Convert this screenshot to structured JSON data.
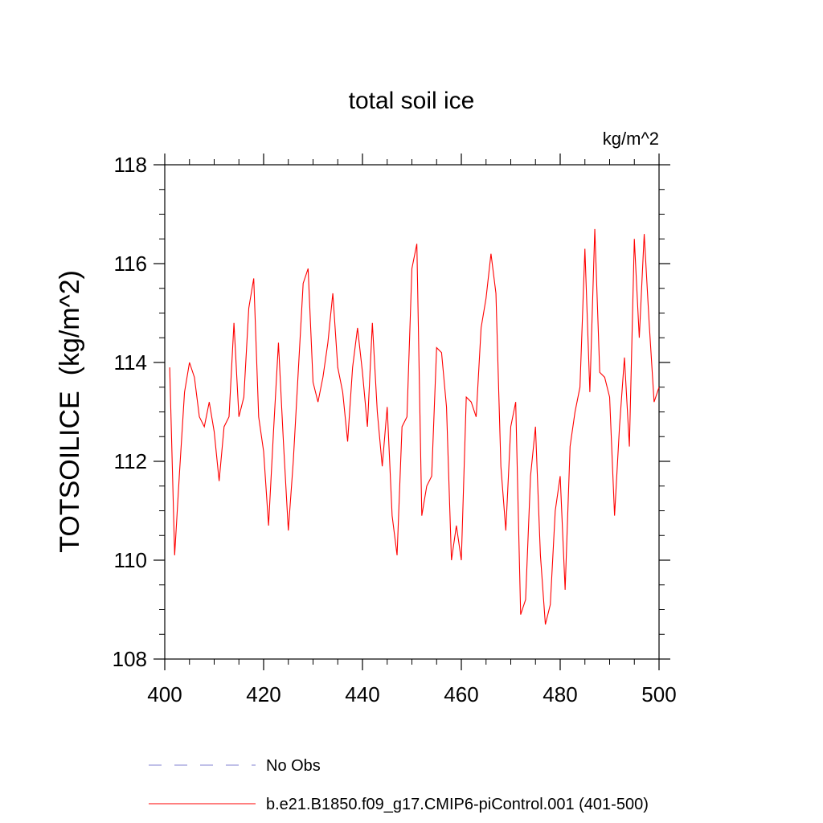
{
  "chart_data": {
    "type": "line",
    "title": "total soil ice",
    "units_label": "kg/m^2",
    "ylabel": "TOTSOILICE  (kg/m^2)",
    "xlabel": "",
    "xlim": [
      400,
      500
    ],
    "ylim": [
      108,
      118
    ],
    "xticks": [
      400,
      420,
      440,
      460,
      480,
      500
    ],
    "yticks": [
      108,
      110,
      112,
      114,
      116,
      118
    ],
    "grid": false,
    "legend_position": "bottom",
    "legend": [
      {
        "label": "No Obs",
        "color": "#8080d0",
        "style": "dashed"
      },
      {
        "label": "b.e21.B1850.f09_g17.CMIP6-piControl.001 (401-500)",
        "color": "#ff0000",
        "style": "solid"
      }
    ],
    "series": [
      {
        "name": "b.e21.B1850.f09_g17.CMIP6-piControl.001 (401-500)",
        "color": "#ff0000",
        "x": [
          401,
          402,
          403,
          404,
          405,
          406,
          407,
          408,
          409,
          410,
          411,
          412,
          413,
          414,
          415,
          416,
          417,
          418,
          419,
          420,
          421,
          422,
          423,
          424,
          425,
          426,
          427,
          428,
          429,
          430,
          431,
          432,
          433,
          434,
          435,
          436,
          437,
          438,
          439,
          440,
          441,
          442,
          443,
          444,
          445,
          446,
          447,
          448,
          449,
          450,
          451,
          452,
          453,
          454,
          455,
          456,
          457,
          458,
          459,
          460,
          461,
          462,
          463,
          464,
          465,
          466,
          467,
          468,
          469,
          470,
          471,
          472,
          473,
          474,
          475,
          476,
          477,
          478,
          479,
          480,
          481,
          482,
          483,
          484,
          485,
          486,
          487,
          488,
          489,
          490,
          491,
          492,
          493,
          494,
          495,
          496,
          497,
          498,
          499,
          500
        ],
        "values": [
          113.9,
          110.1,
          111.8,
          113.4,
          114.0,
          113.7,
          112.9,
          112.7,
          113.2,
          112.6,
          111.6,
          112.7,
          112.9,
          114.8,
          112.9,
          113.3,
          115.1,
          115.7,
          112.9,
          112.2,
          110.7,
          112.6,
          114.4,
          112.4,
          110.6,
          112.0,
          113.8,
          115.6,
          115.9,
          113.6,
          113.2,
          113.7,
          114.4,
          115.4,
          113.9,
          113.4,
          112.4,
          113.9,
          114.7,
          113.8,
          112.7,
          114.8,
          113.0,
          111.9,
          113.1,
          110.9,
          110.1,
          112.7,
          112.9,
          115.9,
          116.4,
          110.9,
          111.5,
          111.7,
          114.3,
          114.2,
          113.1,
          110.0,
          110.7,
          110.0,
          113.3,
          113.2,
          112.9,
          114.7,
          115.3,
          116.2,
          115.4,
          111.9,
          110.6,
          112.7,
          113.2,
          108.9,
          109.2,
          111.7,
          112.7,
          110.1,
          108.7,
          109.1,
          111.0,
          111.7,
          109.4,
          112.3,
          113.0,
          113.5,
          116.3,
          113.4,
          116.7,
          113.8,
          113.7,
          113.3,
          110.9,
          112.7,
          114.1,
          112.3,
          116.5,
          114.5,
          116.6,
          114.8,
          113.2,
          113.5
        ]
      }
    ]
  }
}
